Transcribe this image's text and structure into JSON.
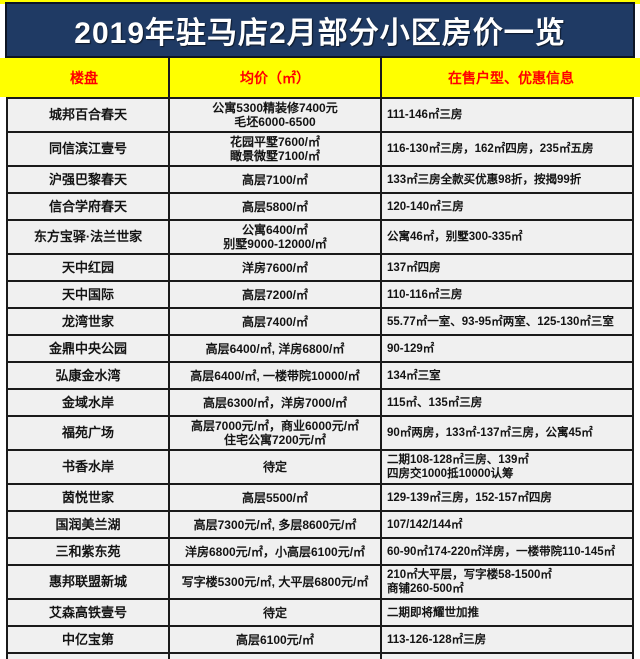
{
  "page": {
    "title": "2019年驻马店2月部分小区房价一览"
  },
  "colors": {
    "title_bg": "#1f3a64",
    "title_text": "#ffffff",
    "header_bg": "#ffff00",
    "header_text": "#ff0000",
    "cell_bg": "#f0f0f0",
    "border": "#1a1a1a"
  },
  "table": {
    "headers": [
      "楼盘",
      "均价（㎡）",
      "在售户型、优惠信息"
    ],
    "rows": [
      {
        "name": "城邦百合春天",
        "price": [
          "公寓5300精装修7400元",
          "毛坯6000-6500"
        ],
        "info": [
          "111-146㎡三房"
        ]
      },
      {
        "name": "同信滨江壹号",
        "price": [
          "花园平墅7600/㎡",
          "瞰景微墅7100/㎡"
        ],
        "info": [
          "116-130㎡三房，162㎡四房，235㎡五房"
        ]
      },
      {
        "name": "沪强巴黎春天",
        "price": [
          "高层7100/㎡"
        ],
        "info": [
          "133㎡三房全款买优惠98折，按揭99折"
        ]
      },
      {
        "name": "信合学府春天",
        "price": [
          "高层5800/㎡"
        ],
        "info": [
          "120-140㎡三房"
        ]
      },
      {
        "name": "东方宝驿·法兰世家",
        "price": [
          "公寓6400/㎡",
          "别墅9000-12000/㎡"
        ],
        "info": [
          "公寓46㎡，别墅300-335㎡"
        ]
      },
      {
        "name": "天中红园",
        "price": [
          "洋房7600/㎡"
        ],
        "info": [
          "137㎡四房"
        ]
      },
      {
        "name": "天中国际",
        "price": [
          "高层7200/㎡"
        ],
        "info": [
          "110-116㎡三房"
        ]
      },
      {
        "name": "龙湾世家",
        "price": [
          "高层7400/㎡"
        ],
        "info": [
          "55.77㎡一室、93-95㎡两室、125-130㎡三室"
        ]
      },
      {
        "name": "金鼎中央公园",
        "price": [
          "高层6400/㎡, 洋房6800/㎡"
        ],
        "info": [
          "90-129㎡"
        ]
      },
      {
        "name": "弘康金水湾",
        "price": [
          "高层6400/㎡, 一楼带院10000/㎡"
        ],
        "info": [
          "134㎡三室"
        ]
      },
      {
        "name": "金域水岸",
        "price": [
          "高层6300/㎡，洋房7000/㎡"
        ],
        "info": [
          "115㎡、135㎡三房"
        ]
      },
      {
        "name": "福苑广场",
        "price": [
          "高层7000元/㎡，商业6000元/㎡",
          "住宅公寓7200元/㎡"
        ],
        "info": [
          "90㎡两房，133㎡-137㎡三房，公寓45㎡"
        ]
      },
      {
        "name": "书香水岸",
        "price": [
          "待定"
        ],
        "info": [
          "二期108-128㎡三房、139㎡",
          "四房交1000抵10000认筹"
        ]
      },
      {
        "name": "茵悦世家",
        "price": [
          "高层5500/㎡"
        ],
        "info": [
          "129-139㎡三房，152-157㎡四房"
        ]
      },
      {
        "name": "国润美兰湖",
        "price": [
          "高层7300元/㎡, 多层8600元/㎡"
        ],
        "info": [
          "107/142/144㎡"
        ]
      },
      {
        "name": "三和紫东苑",
        "price": [
          "洋房6800元/㎡，小高层6100元/㎡"
        ],
        "info": [
          "60-90㎡174-220㎡洋房，一楼带院110-145㎡"
        ]
      },
      {
        "name": "惠邦联盟新城",
        "price": [
          "写字楼5300元/㎡, 大平层6800元/㎡"
        ],
        "info": [
          "210㎡大平层，写字楼58-1500㎡",
          "商铺260-500㎡"
        ]
      },
      {
        "name": "艾森高铁壹号",
        "price": [
          "待定"
        ],
        "info": [
          "二期即将耀世加推"
        ]
      },
      {
        "name": "中亿宝第",
        "price": [
          "高层6100元/㎡"
        ],
        "info": [
          "113-126-128㎡三房"
        ]
      }
    ]
  }
}
